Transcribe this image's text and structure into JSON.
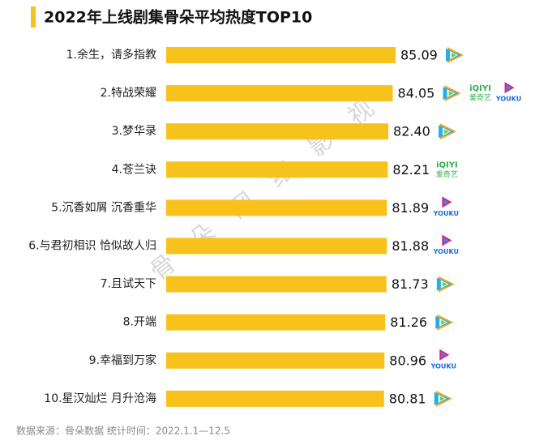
{
  "chart_data": {
    "type": "bar",
    "orientation": "horizontal",
    "title": "2022年上线剧集骨朵平均热度TOP10",
    "categories": [
      "1.余生，请多指教",
      "2.特战荣耀",
      "3.梦华录",
      "4.苍兰诀",
      "5.沉香如屑 沉香重华",
      "6.与君初相识 恰似故人归",
      "7.且试天下",
      "8.开端",
      "9.幸福到万家",
      "10.星汉灿烂 月升沧海"
    ],
    "values": [
      85.09,
      84.05,
      82.4,
      82.21,
      81.89,
      81.88,
      81.73,
      81.26,
      80.96,
      80.81
    ],
    "value_labels": [
      "85.09",
      "84.05",
      "82.40",
      "82.21",
      "81.89",
      "81.88",
      "81.73",
      "81.26",
      "80.96",
      "80.81"
    ],
    "color": "#f8c21c",
    "xlim": [
      0,
      100
    ],
    "logo_text": {
      "iqiyi": "iQIYI",
      "iqiyi_cn": "爱奇艺",
      "youku": "YOUKU"
    },
    "watermark": "骨朵网络影视",
    "source": "数据来源：骨朵数据   统计时间：2022.1.1—12.5"
  }
}
